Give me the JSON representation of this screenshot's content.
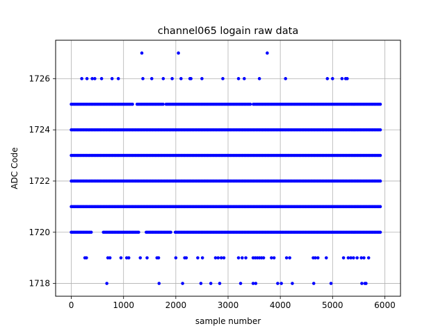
{
  "chart_data": {
    "type": "scatter",
    "title": "channel065 logain raw data",
    "xlabel": "sample number",
    "ylabel": "ADC Code",
    "xlim": [
      -300,
      6300
    ],
    "ylim": [
      1717.5,
      1727.5
    ],
    "xticks": [
      0,
      1000,
      2000,
      3000,
      4000,
      5000,
      6000
    ],
    "yticks": [
      1718,
      1720,
      1722,
      1724,
      1726
    ],
    "xtick_labels": [
      "0",
      "1000",
      "2000",
      "3000",
      "4000",
      "5000",
      "6000"
    ],
    "ytick_labels": [
      "1718",
      "1720",
      "1722",
      "1724",
      "1726"
    ],
    "grid": true,
    "marker_color": "#0000ff",
    "grid_color": "#b0b0b0",
    "series": [
      {
        "points": [
          [
            1350,
            1727
          ],
          [
            2050,
            1727
          ],
          [
            3750,
            1727
          ],
          [
            200,
            1726
          ],
          [
            300,
            1726
          ],
          [
            400,
            1726
          ],
          [
            450,
            1726
          ],
          [
            580,
            1726
          ],
          [
            780,
            1726
          ],
          [
            900,
            1726
          ],
          [
            1370,
            1726
          ],
          [
            1540,
            1726
          ],
          [
            1760,
            1726
          ],
          [
            1930,
            1726
          ],
          [
            2100,
            1726
          ],
          [
            2270,
            1726
          ],
          [
            2290,
            1726
          ],
          [
            2500,
            1726
          ],
          [
            2900,
            1726
          ],
          [
            3200,
            1726
          ],
          [
            3310,
            1726
          ],
          [
            3600,
            1726
          ],
          [
            4100,
            1726
          ],
          [
            4900,
            1726
          ],
          [
            5000,
            1726
          ],
          [
            5180,
            1726
          ],
          [
            5250,
            1726
          ],
          [
            5280,
            1726
          ],
          [
            680,
            1718
          ],
          [
            1680,
            1718
          ],
          [
            2130,
            1718
          ],
          [
            2480,
            1718
          ],
          [
            2670,
            1718
          ],
          [
            2840,
            1718
          ],
          [
            3240,
            1718
          ],
          [
            3480,
            1718
          ],
          [
            3530,
            1718
          ],
          [
            3950,
            1718
          ],
          [
            4020,
            1718
          ],
          [
            4230,
            1718
          ],
          [
            4640,
            1718
          ],
          [
            4970,
            1718
          ],
          [
            5560,
            1718
          ],
          [
            5620,
            1718
          ],
          [
            5640,
            1718
          ],
          [
            260,
            1719
          ],
          [
            290,
            1719
          ],
          [
            700,
            1719
          ],
          [
            740,
            1719
          ],
          [
            950,
            1719
          ],
          [
            1060,
            1719
          ],
          [
            1100,
            1719
          ],
          [
            1320,
            1719
          ],
          [
            1450,
            1719
          ],
          [
            1640,
            1719
          ],
          [
            1670,
            1719
          ],
          [
            2000,
            1719
          ],
          [
            2170,
            1719
          ],
          [
            2200,
            1719
          ],
          [
            2420,
            1719
          ],
          [
            2510,
            1719
          ],
          [
            2760,
            1719
          ],
          [
            2810,
            1719
          ],
          [
            2870,
            1719
          ],
          [
            2920,
            1719
          ],
          [
            3200,
            1719
          ],
          [
            3270,
            1719
          ],
          [
            3340,
            1719
          ],
          [
            3480,
            1719
          ],
          [
            3520,
            1719
          ],
          [
            3560,
            1719
          ],
          [
            3600,
            1719
          ],
          [
            3640,
            1719
          ],
          [
            3680,
            1719
          ],
          [
            3830,
            1719
          ],
          [
            3880,
            1719
          ],
          [
            4120,
            1719
          ],
          [
            4180,
            1719
          ],
          [
            4630,
            1719
          ],
          [
            4670,
            1719
          ],
          [
            4720,
            1719
          ],
          [
            4880,
            1719
          ],
          [
            5210,
            1719
          ],
          [
            5300,
            1719
          ],
          [
            5350,
            1719
          ],
          [
            5400,
            1719
          ],
          [
            5470,
            1719
          ],
          [
            5550,
            1719
          ],
          [
            5600,
            1719
          ],
          [
            5690,
            1719
          ]
        ],
        "dense_levels": [
          1720,
          1721,
          1722,
          1723,
          1724,
          1725
        ],
        "dense_x_range": [
          0,
          5920
        ],
        "dense_gaps": {
          "1720": [
            [
              400,
              600
            ],
            [
              1300,
              1420
            ],
            [
              1920,
              1990
            ]
          ],
          "1725": [
            [
              1200,
              1250
            ],
            [
              1780,
              1800
            ],
            [
              3440,
              3460
            ]
          ]
        }
      }
    ]
  }
}
